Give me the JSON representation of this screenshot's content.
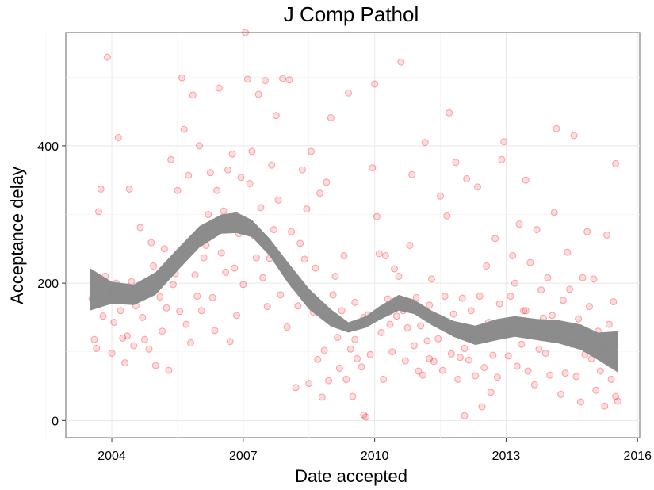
{
  "chart_data": {
    "type": "scatter",
    "title": "J Comp Pathol",
    "xlabel": "Date accepted",
    "ylabel": "Acceptance delay",
    "xlim": [
      2002.95,
      2016.05
    ],
    "ylim": [
      -25,
      565
    ],
    "x_ticks": [
      2004,
      2007,
      2010,
      2013,
      2016
    ],
    "y_ticks": [
      0,
      200,
      400
    ],
    "grid": true,
    "colors": {
      "points": "#ff0000",
      "band": "#888888",
      "panel_border": "#7f7f7f",
      "grid": "#ebebeb"
    },
    "points": [
      [
        2003.55,
        178
      ],
      [
        2003.6,
        118
      ],
      [
        2003.65,
        105
      ],
      [
        2003.7,
        304
      ],
      [
        2003.75,
        337
      ],
      [
        2003.8,
        152
      ],
      [
        2003.85,
        210
      ],
      [
        2003.9,
        529
      ],
      [
        2003.95,
        186
      ],
      [
        2004.0,
        98
      ],
      [
        2004.05,
        143
      ],
      [
        2004.1,
        200
      ],
      [
        2004.15,
        412
      ],
      [
        2004.2,
        160
      ],
      [
        2004.25,
        120
      ],
      [
        2004.3,
        84
      ],
      [
        2004.35,
        123
      ],
      [
        2004.4,
        337
      ],
      [
        2004.45,
        202
      ],
      [
        2004.5,
        109
      ],
      [
        2004.55,
        167
      ],
      [
        2004.6,
        196
      ],
      [
        2004.65,
        281
      ],
      [
        2004.7,
        150
      ],
      [
        2004.75,
        118
      ],
      [
        2004.8,
        183
      ],
      [
        2004.85,
        104
      ],
      [
        2004.9,
        259
      ],
      [
        2004.95,
        225
      ],
      [
        2005.0,
        80
      ],
      [
        2005.05,
        210
      ],
      [
        2005.1,
        180
      ],
      [
        2005.15,
        130
      ],
      [
        2005.2,
        250
      ],
      [
        2005.25,
        164
      ],
      [
        2005.3,
        73
      ],
      [
        2005.35,
        380
      ],
      [
        2005.4,
        198
      ],
      [
        2005.45,
        214
      ],
      [
        2005.5,
        335
      ],
      [
        2005.55,
        159
      ],
      [
        2005.6,
        499
      ],
      [
        2005.65,
        424
      ],
      [
        2005.7,
        140
      ],
      [
        2005.75,
        357
      ],
      [
        2005.8,
        113
      ],
      [
        2005.85,
        474
      ],
      [
        2005.9,
        212
      ],
      [
        2005.95,
        181
      ],
      [
        2006.0,
        400
      ],
      [
        2006.05,
        160
      ],
      [
        2006.1,
        237
      ],
      [
        2006.15,
        255
      ],
      [
        2006.2,
        300
      ],
      [
        2006.25,
        361
      ],
      [
        2006.3,
        179
      ],
      [
        2006.35,
        131
      ],
      [
        2006.4,
        335
      ],
      [
        2006.45,
        484
      ],
      [
        2006.5,
        244
      ],
      [
        2006.55,
        305
      ],
      [
        2006.6,
        216
      ],
      [
        2006.65,
        365
      ],
      [
        2006.7,
        115
      ],
      [
        2006.75,
        388
      ],
      [
        2006.8,
        222
      ],
      [
        2006.85,
        153
      ],
      [
        2006.9,
        272
      ],
      [
        2006.95,
        354
      ],
      [
        2007.0,
        198
      ],
      [
        2007.05,
        571
      ],
      [
        2007.1,
        497
      ],
      [
        2007.15,
        345
      ],
      [
        2007.2,
        392
      ],
      [
        2007.25,
        269
      ],
      [
        2007.3,
        237
      ],
      [
        2007.35,
        475
      ],
      [
        2007.4,
        310
      ],
      [
        2007.45,
        208
      ],
      [
        2007.5,
        495
      ],
      [
        2007.55,
        166
      ],
      [
        2007.6,
        236
      ],
      [
        2007.65,
        372
      ],
      [
        2007.7,
        278
      ],
      [
        2007.75,
        444
      ],
      [
        2007.8,
        321
      ],
      [
        2007.85,
        183
      ],
      [
        2007.9,
        498
      ],
      [
        2007.95,
        219
      ],
      [
        2008.0,
        136
      ],
      [
        2008.05,
        496
      ],
      [
        2008.1,
        275
      ],
      [
        2008.15,
        197
      ],
      [
        2008.2,
        48
      ],
      [
        2008.25,
        167
      ],
      [
        2008.3,
        258
      ],
      [
        2008.35,
        365
      ],
      [
        2008.4,
        235
      ],
      [
        2008.45,
        308
      ],
      [
        2008.5,
        54
      ],
      [
        2008.55,
        392
      ],
      [
        2008.6,
        158
      ],
      [
        2008.65,
        222
      ],
      [
        2008.7,
        89
      ],
      [
        2008.75,
        331
      ],
      [
        2008.8,
        34
      ],
      [
        2008.85,
        102
      ],
      [
        2008.9,
        347
      ],
      [
        2008.95,
        58
      ],
      [
        2009.0,
        441
      ],
      [
        2009.05,
        183
      ],
      [
        2009.1,
        210
      ],
      [
        2009.15,
        121
      ],
      [
        2009.2,
        76
      ],
      [
        2009.25,
        160
      ],
      [
        2009.3,
        240
      ],
      [
        2009.35,
        60
      ],
      [
        2009.4,
        477
      ],
      [
        2009.45,
        104
      ],
      [
        2009.5,
        35
      ],
      [
        2009.55,
        172
      ],
      [
        2009.6,
        90
      ],
      [
        2009.65,
        143
      ],
      [
        2009.7,
        78
      ],
      [
        2009.75,
        8
      ],
      [
        2009.8,
        5
      ],
      [
        2009.85,
        154
      ],
      [
        2009.9,
        96
      ],
      [
        2009.95,
        368
      ],
      [
        2010.0,
        490
      ],
      [
        2010.05,
        297
      ],
      [
        2010.1,
        243
      ],
      [
        2010.15,
        128
      ],
      [
        2010.2,
        60
      ],
      [
        2010.25,
        240
      ],
      [
        2010.3,
        177
      ],
      [
        2010.35,
        140
      ],
      [
        2010.4,
        100
      ],
      [
        2010.45,
        221
      ],
      [
        2010.5,
        152
      ],
      [
        2010.55,
        210
      ],
      [
        2010.6,
        522
      ],
      [
        2010.65,
        160
      ],
      [
        2010.7,
        87
      ],
      [
        2010.75,
        135
      ],
      [
        2010.8,
        255
      ],
      [
        2010.85,
        358
      ],
      [
        2010.9,
        109
      ],
      [
        2010.95,
        179
      ],
      [
        2011.0,
        72
      ],
      [
        2011.05,
        138
      ],
      [
        2011.1,
        66
      ],
      [
        2011.15,
        405
      ],
      [
        2011.2,
        116
      ],
      [
        2011.25,
        168
      ],
      [
        2011.3,
        206
      ],
      [
        2011.35,
        86
      ],
      [
        2011.4,
        150
      ],
      [
        2011.45,
        119
      ],
      [
        2011.5,
        327
      ],
      [
        2011.55,
        73
      ],
      [
        2011.6,
        181
      ],
      [
        2011.65,
        298
      ],
      [
        2011.7,
        448
      ],
      [
        2011.75,
        97
      ],
      [
        2011.8,
        155
      ],
      [
        2011.85,
        376
      ],
      [
        2011.9,
        60
      ],
      [
        2011.95,
        92
      ],
      [
        2012.0,
        178
      ],
      [
        2012.05,
        7
      ],
      [
        2012.1,
        352
      ],
      [
        2012.15,
        88
      ],
      [
        2012.2,
        160
      ],
      [
        2012.25,
        123
      ],
      [
        2012.3,
        65
      ],
      [
        2012.35,
        340
      ],
      [
        2012.4,
        181
      ],
      [
        2012.45,
        20
      ],
      [
        2012.5,
        77
      ],
      [
        2012.55,
        225
      ],
      [
        2012.6,
        143
      ],
      [
        2012.65,
        41
      ],
      [
        2012.7,
        95
      ],
      [
        2012.75,
        265
      ],
      [
        2012.8,
        63
      ],
      [
        2012.85,
        170
      ],
      [
        2012.9,
        380
      ],
      [
        2012.95,
        406
      ],
      [
        2013.0,
        132
      ],
      [
        2013.05,
        94
      ],
      [
        2013.1,
        181
      ],
      [
        2013.15,
        240
      ],
      [
        2013.2,
        200
      ],
      [
        2013.25,
        79
      ],
      [
        2013.3,
        286
      ],
      [
        2013.35,
        111
      ],
      [
        2013.4,
        160
      ],
      [
        2013.45,
        350
      ],
      [
        2013.5,
        72
      ],
      [
        2013.55,
        230
      ],
      [
        2013.6,
        133
      ],
      [
        2013.65,
        52
      ],
      [
        2013.7,
        278
      ],
      [
        2013.75,
        104
      ],
      [
        2013.8,
        190
      ],
      [
        2013.85,
        149
      ],
      [
        2013.9,
        98
      ],
      [
        2013.95,
        208
      ],
      [
        2014.0,
        66
      ],
      [
        2014.05,
        153
      ],
      [
        2014.1,
        303
      ],
      [
        2014.15,
        425
      ],
      [
        2014.2,
        121
      ],
      [
        2014.25,
        38
      ],
      [
        2014.3,
        175
      ],
      [
        2014.35,
        69
      ],
      [
        2014.4,
        245
      ],
      [
        2014.45,
        191
      ],
      [
        2014.5,
        111
      ],
      [
        2014.55,
        415
      ],
      [
        2014.6,
        64
      ],
      [
        2014.65,
        148
      ],
      [
        2014.7,
        27
      ],
      [
        2014.75,
        208
      ],
      [
        2014.8,
        96
      ],
      [
        2014.85,
        275
      ],
      [
        2014.9,
        166
      ],
      [
        2014.95,
        90
      ],
      [
        2015.0,
        206
      ],
      [
        2015.05,
        44
      ],
      [
        2015.1,
        130
      ],
      [
        2015.15,
        72
      ],
      [
        2015.2,
        108
      ],
      [
        2015.25,
        21
      ],
      [
        2015.3,
        270
      ],
      [
        2015.35,
        140
      ],
      [
        2015.4,
        60
      ],
      [
        2015.45,
        173
      ],
      [
        2015.5,
        374
      ],
      [
        2015.5,
        35
      ],
      [
        2015.55,
        28
      ],
      [
        2015.45,
        112
      ],
      [
        2015.35,
        90
      ],
      [
        2009.75,
        150
      ],
      [
        2009.55,
        118
      ],
      [
        2010.15,
        160
      ],
      [
        2011.25,
        90
      ],
      [
        2012.05,
        105
      ],
      [
        2013.45,
        160
      ]
    ],
    "smooth_upper": [
      [
        2003.5,
        222
      ],
      [
        2004.0,
        202
      ],
      [
        2004.5,
        198
      ],
      [
        2005.0,
        216
      ],
      [
        2005.5,
        250
      ],
      [
        2006.0,
        283
      ],
      [
        2006.5,
        300
      ],
      [
        2006.85,
        303
      ],
      [
        2007.2,
        292
      ],
      [
        2007.6,
        265
      ],
      [
        2008.0,
        232
      ],
      [
        2008.5,
        192
      ],
      [
        2009.0,
        162
      ],
      [
        2009.4,
        143
      ],
      [
        2009.8,
        152
      ],
      [
        2010.1,
        166
      ],
      [
        2010.55,
        183
      ],
      [
        2010.9,
        176
      ],
      [
        2011.3,
        160
      ],
      [
        2011.8,
        145
      ],
      [
        2012.3,
        138
      ],
      [
        2012.8,
        148
      ],
      [
        2013.2,
        152
      ],
      [
        2013.7,
        148
      ],
      [
        2014.2,
        146
      ],
      [
        2014.7,
        140
      ],
      [
        2015.1,
        128
      ],
      [
        2015.55,
        130
      ]
    ],
    "smooth_lower": [
      [
        2003.5,
        160
      ],
      [
        2004.0,
        170
      ],
      [
        2004.5,
        168
      ],
      [
        2005.0,
        183
      ],
      [
        2005.5,
        218
      ],
      [
        2006.0,
        252
      ],
      [
        2006.5,
        272
      ],
      [
        2006.85,
        273
      ],
      [
        2007.2,
        267
      ],
      [
        2007.6,
        240
      ],
      [
        2008.0,
        202
      ],
      [
        2008.5,
        162
      ],
      [
        2009.0,
        137
      ],
      [
        2009.4,
        128
      ],
      [
        2009.8,
        135
      ],
      [
        2010.1,
        146
      ],
      [
        2010.55,
        160
      ],
      [
        2010.9,
        155
      ],
      [
        2011.3,
        139
      ],
      [
        2011.8,
        122
      ],
      [
        2012.3,
        110
      ],
      [
        2012.8,
        117
      ],
      [
        2013.2,
        122
      ],
      [
        2013.7,
        117
      ],
      [
        2014.2,
        112
      ],
      [
        2014.7,
        103
      ],
      [
        2015.1,
        88
      ],
      [
        2015.55,
        70
      ]
    ]
  }
}
